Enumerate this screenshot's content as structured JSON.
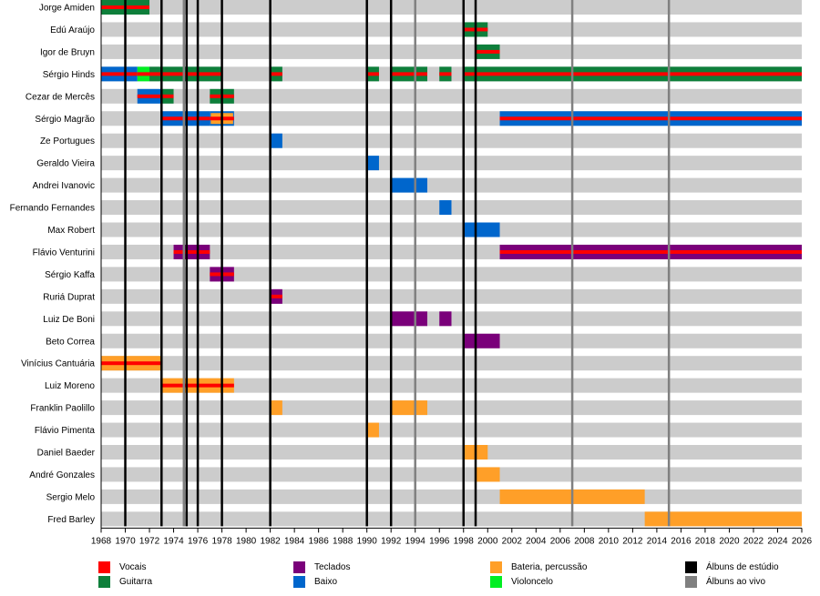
{
  "chart_data": {
    "type": "timeline",
    "title": "",
    "xlabel": "",
    "ylabel": "",
    "xlim": [
      1968,
      2026
    ],
    "x_ticks": [
      1968,
      1970,
      1972,
      1974,
      1976,
      1978,
      1980,
      1982,
      1984,
      1986,
      1988,
      1990,
      1992,
      1994,
      1996,
      1998,
      2000,
      2002,
      2004,
      2006,
      2008,
      2010,
      2012,
      2014,
      2016,
      2018,
      2020,
      2022,
      2024,
      2026
    ],
    "roles": {
      "vocals": {
        "label": "Vocais",
        "color": "#ff0000"
      },
      "guitar": {
        "label": "Guitarra",
        "color": "#0e7f3b"
      },
      "keys": {
        "label": "Teclados",
        "color": "#7a007a"
      },
      "bass": {
        "label": "Baixo",
        "color": "#0066cc"
      },
      "drums": {
        "label": "Bateria, percussão",
        "color": "#ff9f28"
      },
      "cello": {
        "label": "Violoncelo",
        "color": "#00ee22"
      },
      "studio": {
        "label": "Álbuns de estúdio",
        "color": "#000000"
      },
      "live": {
        "label": "Álbuns ao vivo",
        "color": "#808080"
      }
    },
    "legend_order": [
      [
        "vocals",
        "guitar"
      ],
      [
        "keys",
        "bass"
      ],
      [
        "drums",
        "cello"
      ],
      [
        "studio",
        "live"
      ]
    ],
    "studio_albums": [
      1970,
      1973,
      1975,
      1976,
      1978,
      1982,
      1990,
      1992,
      1998,
      1999
    ],
    "live_albums": [
      1975,
      1994,
      2007,
      2015
    ],
    "members": [
      {
        "name": "Jorge Amiden",
        "spans": [
          {
            "start": 1968,
            "end": 1972,
            "role": "guitar",
            "vocals": true
          }
        ]
      },
      {
        "name": "Edú Araújo",
        "spans": [
          {
            "start": 1998,
            "end": 2000,
            "role": "guitar",
            "vocals": true
          }
        ]
      },
      {
        "name": "Igor de Bruyn",
        "spans": [
          {
            "start": 1999,
            "end": 2001,
            "role": "guitar",
            "vocals": true
          }
        ]
      },
      {
        "name": "Sérgio Hinds",
        "spans": [
          {
            "start": 1968,
            "end": 1971,
            "role": "bass",
            "vocals": true
          },
          {
            "start": 1971,
            "end": 1972,
            "role": "cello",
            "vocals": true
          },
          {
            "start": 1972,
            "end": 1978,
            "role": "guitar",
            "vocals": true
          },
          {
            "start": 1982,
            "end": 1983,
            "role": "guitar",
            "vocals": true
          },
          {
            "start": 1990,
            "end": 1991,
            "role": "guitar",
            "vocals": true
          },
          {
            "start": 1992,
            "end": 1995,
            "role": "guitar",
            "vocals": true
          },
          {
            "start": 1996,
            "end": 1997,
            "role": "guitar",
            "vocals": true
          },
          {
            "start": 1998,
            "end": 2026,
            "role": "guitar",
            "vocals": true
          }
        ]
      },
      {
        "name": "Cezar de Mercês",
        "spans": [
          {
            "start": 1971,
            "end": 1973,
            "role": "bass",
            "vocals": true
          },
          {
            "start": 1973,
            "end": 1974,
            "role": "guitar",
            "vocals": true
          },
          {
            "start": 1977,
            "end": 1979,
            "role": "guitar",
            "vocals": true
          }
        ]
      },
      {
        "name": "Sérgio Magrão",
        "spans": [
          {
            "start": 1973,
            "end": 1977,
            "role": "bass",
            "vocals": true
          },
          {
            "start": 1977,
            "end": 1979,
            "role": "bass",
            "inner": "drums",
            "vocals": true
          },
          {
            "start": 2001,
            "end": 2026,
            "role": "bass",
            "vocals": true
          }
        ]
      },
      {
        "name": "Ze Portugues",
        "spans": [
          {
            "start": 1982,
            "end": 1983,
            "role": "bass",
            "vocals": false
          }
        ]
      },
      {
        "name": "Geraldo Vieira",
        "spans": [
          {
            "start": 1990,
            "end": 1991,
            "role": "bass",
            "vocals": false
          }
        ]
      },
      {
        "name": "Andrei Ivanovic",
        "spans": [
          {
            "start": 1992,
            "end": 1995,
            "role": "bass",
            "vocals": false
          }
        ]
      },
      {
        "name": "Fernando Fernandes",
        "spans": [
          {
            "start": 1996,
            "end": 1997,
            "role": "bass",
            "vocals": false
          }
        ]
      },
      {
        "name": "Max Robert",
        "spans": [
          {
            "start": 1998,
            "end": 2001,
            "role": "bass",
            "vocals": false
          }
        ]
      },
      {
        "name": "Flávio Venturini",
        "spans": [
          {
            "start": 1974,
            "end": 1977,
            "role": "keys",
            "vocals": true
          },
          {
            "start": 2001,
            "end": 2026,
            "role": "keys",
            "vocals": true
          }
        ]
      },
      {
        "name": "Sérgio Kaffa",
        "spans": [
          {
            "start": 1977,
            "end": 1979,
            "role": "keys",
            "vocals": true
          }
        ]
      },
      {
        "name": "Ruriá Duprat",
        "spans": [
          {
            "start": 1982,
            "end": 1983,
            "role": "keys",
            "vocals": true
          }
        ]
      },
      {
        "name": "Luiz De Boni",
        "spans": [
          {
            "start": 1992,
            "end": 1995,
            "role": "keys",
            "vocals": false
          },
          {
            "start": 1996,
            "end": 1997,
            "role": "keys",
            "vocals": false
          }
        ]
      },
      {
        "name": "Beto Correa",
        "spans": [
          {
            "start": 1998,
            "end": 2001,
            "role": "keys",
            "vocals": false
          }
        ]
      },
      {
        "name": "Vinícius Cantuária",
        "spans": [
          {
            "start": 1968,
            "end": 1973,
            "role": "drums",
            "vocals": true
          }
        ]
      },
      {
        "name": "Luiz Moreno",
        "spans": [
          {
            "start": 1973,
            "end": 1979,
            "role": "drums",
            "vocals": true
          }
        ]
      },
      {
        "name": "Franklin Paolillo",
        "spans": [
          {
            "start": 1982,
            "end": 1983,
            "role": "drums",
            "vocals": false
          },
          {
            "start": 1992,
            "end": 1995,
            "role": "drums",
            "vocals": false
          }
        ]
      },
      {
        "name": "Flávio Pimenta",
        "spans": [
          {
            "start": 1990,
            "end": 1991,
            "role": "drums",
            "vocals": false
          }
        ]
      },
      {
        "name": "Daniel Baeder",
        "spans": [
          {
            "start": 1998,
            "end": 2000,
            "role": "drums",
            "vocals": false
          }
        ]
      },
      {
        "name": "André Gonzales",
        "spans": [
          {
            "start": 1999,
            "end": 2001,
            "role": "drums",
            "vocals": false
          }
        ]
      },
      {
        "name": "Sergio Melo",
        "spans": [
          {
            "start": 2001,
            "end": 2013,
            "role": "drums",
            "vocals": false
          }
        ]
      },
      {
        "name": "Fred Barley",
        "spans": [
          {
            "start": 2013,
            "end": 2026,
            "role": "drums",
            "vocals": false
          }
        ]
      }
    ]
  }
}
